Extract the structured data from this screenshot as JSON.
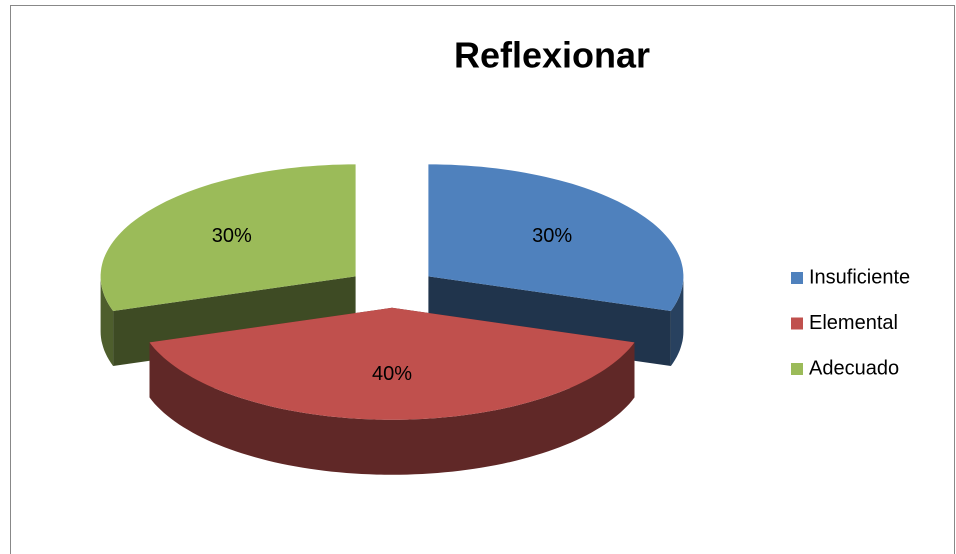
{
  "chart_data": {
    "type": "pie",
    "title": "Reflexionar",
    "categories": [
      "Insuficiente",
      "Elemental",
      "Adecuado"
    ],
    "values": [
      30,
      40,
      30
    ],
    "value_labels": [
      "30%",
      "40%",
      "30%"
    ],
    "colors": [
      "#4f81bd",
      "#c0504d",
      "#9bbb59"
    ],
    "legend": "right"
  }
}
